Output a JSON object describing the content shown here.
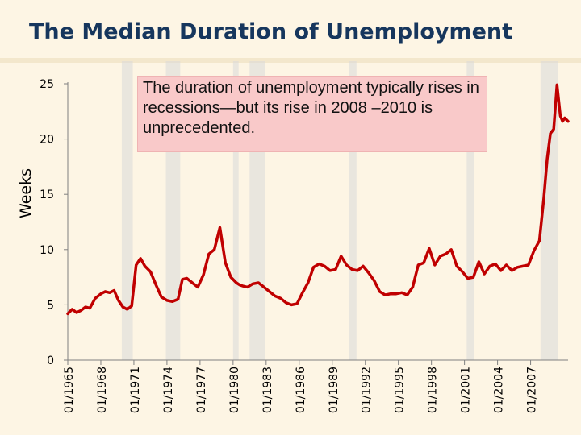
{
  "title": "The Median Duration of Unemployment",
  "callout": "The duration of unemployment typically rises in recessions—but its rise in 2008 –2010 is unprecedented.",
  "colors": {
    "line": "#c00000",
    "recession": "#d9d9d9",
    "axis": "#808080",
    "title": "#16365d",
    "callout_bg": "#f9c9c9",
    "background": "#fdf5e4"
  },
  "chart_data": {
    "type": "line",
    "ylabel": "Weeks",
    "xlabel": "",
    "ylim": [
      0,
      25
    ],
    "yticks": [
      0,
      5,
      10,
      15,
      20,
      25
    ],
    "xlim": [
      1965.0,
      2010.4
    ],
    "xticks": [
      "01/1965",
      "01/1968",
      "01/1971",
      "01/1974",
      "01/1977",
      "01/1980",
      "01/1983",
      "01/1986",
      "01/1989",
      "01/1992",
      "01/1995",
      "01/1998",
      "01/2001",
      "01/2004",
      "01/2007"
    ],
    "grid": false,
    "recession_bands": [
      [
        1969.9,
        1970.9
      ],
      [
        1973.9,
        1975.2
      ],
      [
        1980.0,
        1980.5
      ],
      [
        1981.5,
        1982.9
      ],
      [
        1990.5,
        1991.2
      ],
      [
        2001.2,
        2001.9
      ],
      [
        2007.9,
        2009.5
      ]
    ],
    "series": [
      {
        "x": [
          1965.0,
          1965.4,
          1965.8,
          1966.2,
          1966.6,
          1967.0,
          1967.5,
          1968.0,
          1968.4,
          1968.8,
          1969.2,
          1969.6,
          1970.0,
          1970.4,
          1970.8,
          1971.2,
          1971.6,
          1972.0,
          1972.5,
          1973.0,
          1973.5,
          1974.0,
          1974.5,
          1975.0,
          1975.4,
          1975.8,
          1976.3,
          1976.8,
          1977.3,
          1977.8,
          1978.3,
          1978.8,
          1979.3,
          1979.8,
          1980.3,
          1980.6,
          1980.9,
          1981.3,
          1981.8,
          1982.3,
          1982.8,
          1983.3,
          1983.8,
          1984.3,
          1984.8,
          1985.3,
          1985.8,
          1986.3,
          1986.8,
          1987.3,
          1987.8,
          1988.3,
          1988.8,
          1989.3,
          1989.8,
          1990.3,
          1990.8,
          1991.3,
          1991.8,
          1992.3,
          1992.8,
          1993.3,
          1993.8,
          1994.3,
          1994.8,
          1995.3,
          1995.8,
          1996.3,
          1996.8,
          1997.3,
          1997.8,
          1998.3,
          1998.8,
          1999.3,
          1999.8,
          2000.3,
          2000.8,
          2001.3,
          2001.8,
          2002.3,
          2002.8,
          2003.3,
          2003.8,
          2004.3,
          2004.8,
          2005.3,
          2005.8,
          2006.3,
          2006.8,
          2007.3,
          2007.8,
          2008.2,
          2008.5,
          2008.8,
          2009.1,
          2009.4,
          2009.7,
          2009.9,
          2010.1,
          2010.4
        ],
        "y": [
          4.2,
          4.6,
          4.3,
          4.5,
          4.8,
          4.7,
          5.6,
          6.0,
          6.2,
          6.1,
          6.3,
          5.4,
          4.8,
          4.6,
          4.9,
          8.6,
          9.2,
          8.5,
          8.0,
          6.8,
          5.7,
          5.4,
          5.3,
          5.5,
          7.3,
          7.4,
          7.0,
          6.6,
          7.7,
          9.6,
          10.0,
          12.0,
          8.8,
          7.5,
          7.0,
          6.8,
          6.7,
          6.6,
          6.9,
          7.0,
          6.6,
          6.2,
          5.8,
          5.6,
          5.2,
          5.0,
          5.1,
          6.1,
          7.0,
          8.4,
          8.7,
          8.5,
          8.1,
          8.2,
          9.4,
          8.6,
          8.2,
          8.1,
          8.5,
          7.9,
          7.2,
          6.2,
          5.9,
          6.0,
          6.0,
          6.1,
          5.9,
          6.6,
          8.6,
          8.8,
          10.1,
          8.6,
          9.4,
          9.6,
          10.0,
          8.5,
          8.0,
          7.4,
          7.5,
          8.9,
          7.8,
          8.5,
          8.7,
          8.1,
          8.6,
          8.1,
          8.4,
          8.5,
          8.6,
          9.9,
          10.8,
          14.7,
          18.2,
          20.5,
          20.9,
          24.9,
          22.1,
          21.6,
          21.9,
          21.6
        ]
      }
    ]
  }
}
